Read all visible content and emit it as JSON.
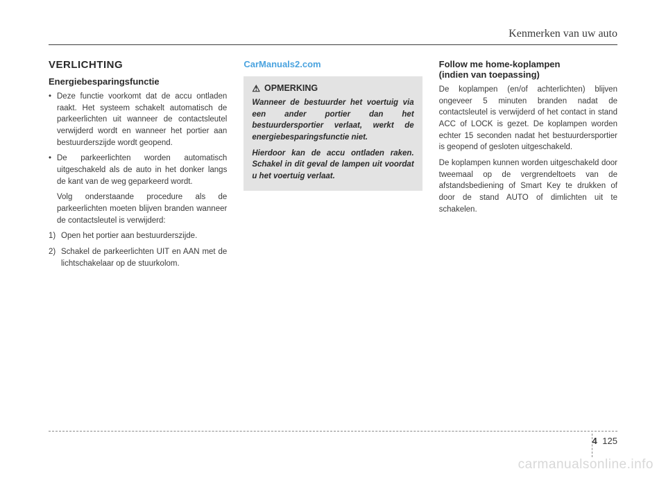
{
  "running_head": "Kenmerken van uw auto",
  "watermark_top": "CarManuals2.com",
  "watermark_bottom": "carmanualsonline.info",
  "col1": {
    "section_title": "VERLICHTING",
    "subheading": "Energiebesparingsfunctie",
    "bullets": [
      "Deze functie voorkomt dat de accu ontladen raakt. Het systeem schakelt automatisch de parkeerlichten uit wanneer de contactsleutel verwijderd wordt en wanneer het portier aan bestuurderszijde wordt geopend.",
      "De parkeerlichten worden automatisch uitgeschakeld als de auto in het donker langs de kant van de weg geparkeerd wordt."
    ],
    "sub_para": "Volg onderstaande procedure als de parkeerlichten moeten blijven branden wanneer de contactsleutel is verwijderd:",
    "numbered": [
      {
        "marker": "1)",
        "text": "Open het portier aan bestuurderszijde."
      },
      {
        "marker": "2)",
        "text": "Schakel de parkeerlichten UIT en AAN met de lichtschakelaar op de stuurkolom."
      }
    ]
  },
  "col2": {
    "notice_title": "OPMERKING",
    "notice_paras": [
      "Wanneer de bestuurder het voertuig via een ander portier dan het bestuurdersportier verlaat, werkt de energiebesparingsfunctie niet.",
      "Hierdoor kan de accu ontladen raken. Schakel in dit geval de lampen uit voordat u het voertuig verlaat."
    ]
  },
  "col3": {
    "subheading_line1": "Follow me home-koplampen",
    "subheading_line2": "(indien van toepassing)",
    "paras": [
      "De koplampen (en/of achterlichten) blijven ongeveer 5 minuten branden nadat de contactsleutel is verwijderd of het contact in stand ACC of LOCK is gezet. De koplampen worden echter 15 seconden nadat het bestuurdersportier is geopend of gesloten uitgeschakeld.",
      "De koplampen kunnen worden uitgeschakeld door tweemaal op de vergrendeltoets van de afstandsbediening of Smart Key te drukken of door de stand AUTO of dimlichten uit te schakelen."
    ]
  },
  "footer": {
    "chapter": "4",
    "page": "125"
  }
}
